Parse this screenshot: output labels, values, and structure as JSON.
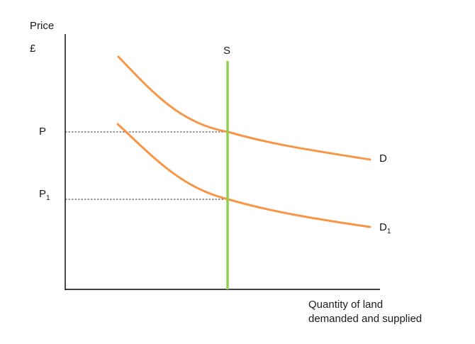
{
  "chart_data": {
    "type": "line",
    "title": "",
    "ylabel": "Price",
    "yunit": "£",
    "xlabel_lines": [
      "Quantity of land",
      "demanded and supplied"
    ],
    "price_levels": [
      {
        "name": "P",
        "base": "P",
        "sub": ""
      },
      {
        "name": "P1",
        "base": "P",
        "sub": "1"
      }
    ],
    "series": [
      {
        "name": "S",
        "base": "S",
        "sub": "",
        "kind": "vertical",
        "color": "#92d050"
      },
      {
        "name": "D",
        "base": "D",
        "sub": "",
        "kind": "curve",
        "color": "#f79646"
      },
      {
        "name": "D1",
        "base": "D",
        "sub": "1",
        "kind": "curve",
        "color": "#f79646"
      }
    ],
    "grid": false,
    "reference_lines": "dashed horizontal lines from P and P1 to the supply line",
    "axis_color": "#000000"
  }
}
